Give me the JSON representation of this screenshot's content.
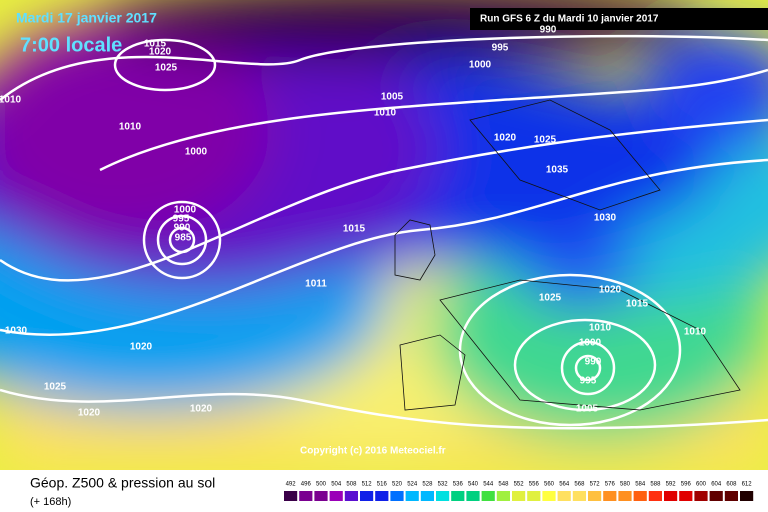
{
  "header": {
    "date": "Mardi 17 janvier 2017",
    "time": "7:00 locale",
    "run": "Run GFS 6 Z du Mardi 10 janvier 2017"
  },
  "copyright": "Copyright (c) 2016 Meteociel.fr",
  "footer": {
    "title": "Géop. Z500 & pression au sol",
    "range": "(+ 168h)"
  },
  "scale": [
    492,
    496,
    500,
    504,
    508,
    512,
    516,
    520,
    524,
    528,
    532,
    536,
    540,
    544,
    548,
    552,
    556,
    560,
    564,
    568,
    572,
    576,
    580,
    584,
    588,
    592,
    596,
    600,
    604,
    608,
    612
  ],
  "isobar_labels": [
    1015,
    1020,
    1025,
    1010,
    1005,
    1010,
    1010,
    1000,
    995,
    1000,
    990,
    1020,
    1025,
    1035,
    1030,
    1000,
    995,
    990,
    985,
    1015,
    1011,
    1025,
    1020,
    1015,
    1010,
    1010,
    1000,
    990,
    995,
    1005,
    1030,
    1020,
    1025,
    1020,
    1020
  ]
}
